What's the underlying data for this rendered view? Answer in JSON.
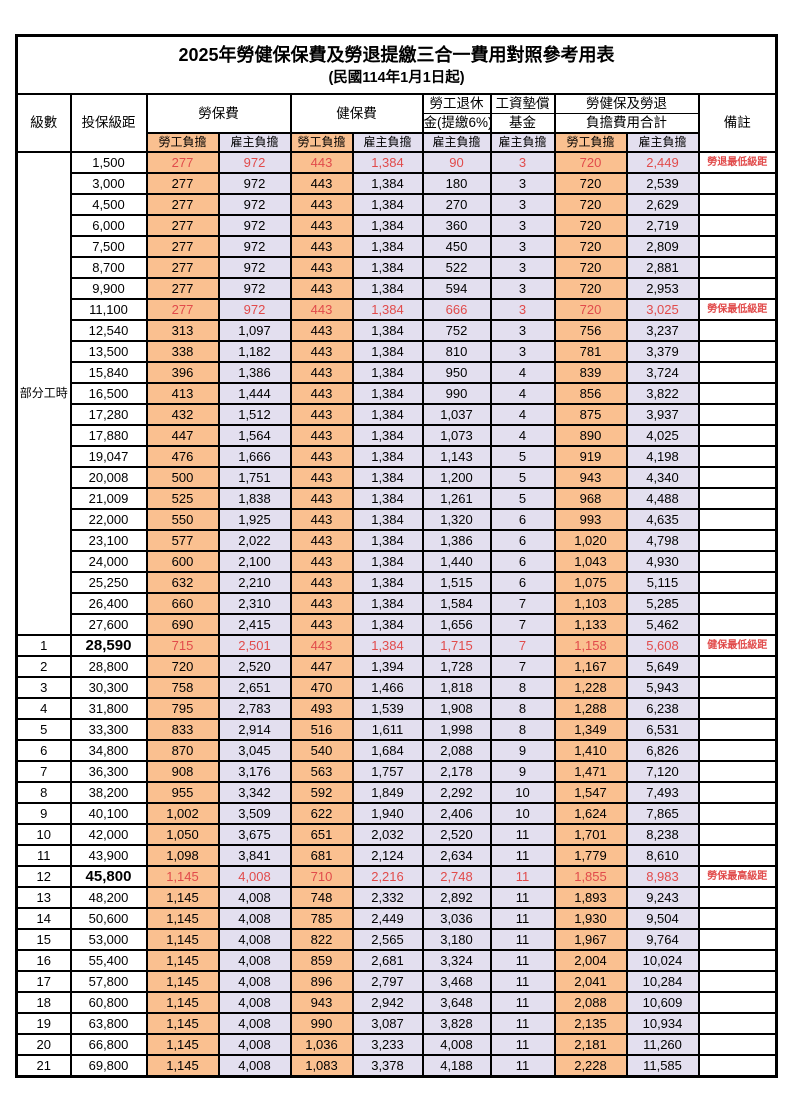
{
  "title": "2025年勞健保保費及勞退提繳三合一費用對照參考用表",
  "subtitle": "(民國114年1月1日起)",
  "header": {
    "level": "級數",
    "salary": "投保級距",
    "labor": "勞保費",
    "health": "健保費",
    "pension_line1": "勞工退休",
    "pension_line2": "金(提繳6%)",
    "wage_fund_line1": "工資墊償",
    "wage_fund_line2": "基金",
    "total_line1": "勞健保及勞退",
    "total_line2": "負擔費用合計",
    "note": "備註",
    "worker": "勞工負擔",
    "employer": "雇主負擔"
  },
  "part_time_label": "部分工時",
  "colors": {
    "worker_bg": "#FAC090",
    "employer_bg": "#E3DFEF",
    "highlight_text": "#E14B4B",
    "border": "#000000"
  },
  "notes_legend": {
    "pension_min": "勞退最低級距",
    "labor_min": "勞保最低級距",
    "health_min": "健保最低級距",
    "labor_max": "勞保最高級距"
  },
  "rows": [
    {
      "level": "",
      "salary": "1,500",
      "values": [
        "277",
        "972",
        "443",
        "1,384",
        "90",
        "3",
        "720",
        "2,449"
      ],
      "note": "勞退最低級距",
      "highlight": true,
      "bold": false
    },
    {
      "level": "",
      "salary": "3,000",
      "values": [
        "277",
        "972",
        "443",
        "1,384",
        "180",
        "3",
        "720",
        "2,539"
      ],
      "note": "",
      "highlight": false,
      "bold": false
    },
    {
      "level": "",
      "salary": "4,500",
      "values": [
        "277",
        "972",
        "443",
        "1,384",
        "270",
        "3",
        "720",
        "2,629"
      ],
      "note": "",
      "highlight": false,
      "bold": false
    },
    {
      "level": "",
      "salary": "6,000",
      "values": [
        "277",
        "972",
        "443",
        "1,384",
        "360",
        "3",
        "720",
        "2,719"
      ],
      "note": "",
      "highlight": false,
      "bold": false
    },
    {
      "level": "",
      "salary": "7,500",
      "values": [
        "277",
        "972",
        "443",
        "1,384",
        "450",
        "3",
        "720",
        "2,809"
      ],
      "note": "",
      "highlight": false,
      "bold": false
    },
    {
      "level": "",
      "salary": "8,700",
      "values": [
        "277",
        "972",
        "443",
        "1,384",
        "522",
        "3",
        "720",
        "2,881"
      ],
      "note": "",
      "highlight": false,
      "bold": false
    },
    {
      "level": "",
      "salary": "9,900",
      "values": [
        "277",
        "972",
        "443",
        "1,384",
        "594",
        "3",
        "720",
        "2,953"
      ],
      "note": "",
      "highlight": false,
      "bold": false
    },
    {
      "level": "",
      "salary": "11,100",
      "values": [
        "277",
        "972",
        "443",
        "1,384",
        "666",
        "3",
        "720",
        "3,025"
      ],
      "note": "勞保最低級距",
      "highlight": true,
      "bold": false
    },
    {
      "level": "",
      "salary": "12,540",
      "values": [
        "313",
        "1,097",
        "443",
        "1,384",
        "752",
        "3",
        "756",
        "3,237"
      ],
      "note": "",
      "highlight": false,
      "bold": false
    },
    {
      "level": "",
      "salary": "13,500",
      "values": [
        "338",
        "1,182",
        "443",
        "1,384",
        "810",
        "3",
        "781",
        "3,379"
      ],
      "note": "",
      "highlight": false,
      "bold": false
    },
    {
      "level": "",
      "salary": "15,840",
      "values": [
        "396",
        "1,386",
        "443",
        "1,384",
        "950",
        "4",
        "839",
        "3,724"
      ],
      "note": "",
      "highlight": false,
      "bold": false
    },
    {
      "level": "",
      "salary": "16,500",
      "values": [
        "413",
        "1,444",
        "443",
        "1,384",
        "990",
        "4",
        "856",
        "3,822"
      ],
      "note": "",
      "highlight": false,
      "bold": false
    },
    {
      "level": "",
      "salary": "17,280",
      "values": [
        "432",
        "1,512",
        "443",
        "1,384",
        "1,037",
        "4",
        "875",
        "3,937"
      ],
      "note": "",
      "highlight": false,
      "bold": false
    },
    {
      "level": "",
      "salary": "17,880",
      "values": [
        "447",
        "1,564",
        "443",
        "1,384",
        "1,073",
        "4",
        "890",
        "4,025"
      ],
      "note": "",
      "highlight": false,
      "bold": false
    },
    {
      "level": "",
      "salary": "19,047",
      "values": [
        "476",
        "1,666",
        "443",
        "1,384",
        "1,143",
        "5",
        "919",
        "4,198"
      ],
      "note": "",
      "highlight": false,
      "bold": false
    },
    {
      "level": "",
      "salary": "20,008",
      "values": [
        "500",
        "1,751",
        "443",
        "1,384",
        "1,200",
        "5",
        "943",
        "4,340"
      ],
      "note": "",
      "highlight": false,
      "bold": false
    },
    {
      "level": "",
      "salary": "21,009",
      "values": [
        "525",
        "1,838",
        "443",
        "1,384",
        "1,261",
        "5",
        "968",
        "4,488"
      ],
      "note": "",
      "highlight": false,
      "bold": false
    },
    {
      "level": "",
      "salary": "22,000",
      "values": [
        "550",
        "1,925",
        "443",
        "1,384",
        "1,320",
        "6",
        "993",
        "4,635"
      ],
      "note": "",
      "highlight": false,
      "bold": false
    },
    {
      "level": "",
      "salary": "23,100",
      "values": [
        "577",
        "2,022",
        "443",
        "1,384",
        "1,386",
        "6",
        "1,020",
        "4,798"
      ],
      "note": "",
      "highlight": false,
      "bold": false
    },
    {
      "level": "",
      "salary": "24,000",
      "values": [
        "600",
        "2,100",
        "443",
        "1,384",
        "1,440",
        "6",
        "1,043",
        "4,930"
      ],
      "note": "",
      "highlight": false,
      "bold": false
    },
    {
      "level": "",
      "salary": "25,250",
      "values": [
        "632",
        "2,210",
        "443",
        "1,384",
        "1,515",
        "6",
        "1,075",
        "5,115"
      ],
      "note": "",
      "highlight": false,
      "bold": false
    },
    {
      "level": "",
      "salary": "26,400",
      "values": [
        "660",
        "2,310",
        "443",
        "1,384",
        "1,584",
        "7",
        "1,103",
        "5,285"
      ],
      "note": "",
      "highlight": false,
      "bold": false
    },
    {
      "level": "",
      "salary": "27,600",
      "values": [
        "690",
        "2,415",
        "443",
        "1,384",
        "1,656",
        "7",
        "1,133",
        "5,462"
      ],
      "note": "",
      "highlight": false,
      "bold": false
    },
    {
      "level": "1",
      "salary": "28,590",
      "values": [
        "715",
        "2,501",
        "443",
        "1,384",
        "1,715",
        "7",
        "1,158",
        "5,608"
      ],
      "note": "健保最低級距",
      "highlight": true,
      "bold": true
    },
    {
      "level": "2",
      "salary": "28,800",
      "values": [
        "720",
        "2,520",
        "447",
        "1,394",
        "1,728",
        "7",
        "1,167",
        "5,649"
      ],
      "note": "",
      "highlight": false,
      "bold": false
    },
    {
      "level": "3",
      "salary": "30,300",
      "values": [
        "758",
        "2,651",
        "470",
        "1,466",
        "1,818",
        "8",
        "1,228",
        "5,943"
      ],
      "note": "",
      "highlight": false,
      "bold": false
    },
    {
      "level": "4",
      "salary": "31,800",
      "values": [
        "795",
        "2,783",
        "493",
        "1,539",
        "1,908",
        "8",
        "1,288",
        "6,238"
      ],
      "note": "",
      "highlight": false,
      "bold": false
    },
    {
      "level": "5",
      "salary": "33,300",
      "values": [
        "833",
        "2,914",
        "516",
        "1,611",
        "1,998",
        "8",
        "1,349",
        "6,531"
      ],
      "note": "",
      "highlight": false,
      "bold": false
    },
    {
      "level": "6",
      "salary": "34,800",
      "values": [
        "870",
        "3,045",
        "540",
        "1,684",
        "2,088",
        "9",
        "1,410",
        "6,826"
      ],
      "note": "",
      "highlight": false,
      "bold": false
    },
    {
      "level": "7",
      "salary": "36,300",
      "values": [
        "908",
        "3,176",
        "563",
        "1,757",
        "2,178",
        "9",
        "1,471",
        "7,120"
      ],
      "note": "",
      "highlight": false,
      "bold": false
    },
    {
      "level": "8",
      "salary": "38,200",
      "values": [
        "955",
        "3,342",
        "592",
        "1,849",
        "2,292",
        "10",
        "1,547",
        "7,493"
      ],
      "note": "",
      "highlight": false,
      "bold": false
    },
    {
      "level": "9",
      "salary": "40,100",
      "values": [
        "1,002",
        "3,509",
        "622",
        "1,940",
        "2,406",
        "10",
        "1,624",
        "7,865"
      ],
      "note": "",
      "highlight": false,
      "bold": false
    },
    {
      "level": "10",
      "salary": "42,000",
      "values": [
        "1,050",
        "3,675",
        "651",
        "2,032",
        "2,520",
        "11",
        "1,701",
        "8,238"
      ],
      "note": "",
      "highlight": false,
      "bold": false
    },
    {
      "level": "11",
      "salary": "43,900",
      "values": [
        "1,098",
        "3,841",
        "681",
        "2,124",
        "2,634",
        "11",
        "1,779",
        "8,610"
      ],
      "note": "",
      "highlight": false,
      "bold": false
    },
    {
      "level": "12",
      "salary": "45,800",
      "values": [
        "1,145",
        "4,008",
        "710",
        "2,216",
        "2,748",
        "11",
        "1,855",
        "8,983"
      ],
      "note": "勞保最高級距",
      "highlight": true,
      "bold": true
    },
    {
      "level": "13",
      "salary": "48,200",
      "values": [
        "1,145",
        "4,008",
        "748",
        "2,332",
        "2,892",
        "11",
        "1,893",
        "9,243"
      ],
      "note": "",
      "highlight": false,
      "bold": false
    },
    {
      "level": "14",
      "salary": "50,600",
      "values": [
        "1,145",
        "4,008",
        "785",
        "2,449",
        "3,036",
        "11",
        "1,930",
        "9,504"
      ],
      "note": "",
      "highlight": false,
      "bold": false
    },
    {
      "level": "15",
      "salary": "53,000",
      "values": [
        "1,145",
        "4,008",
        "822",
        "2,565",
        "3,180",
        "11",
        "1,967",
        "9,764"
      ],
      "note": "",
      "highlight": false,
      "bold": false
    },
    {
      "level": "16",
      "salary": "55,400",
      "values": [
        "1,145",
        "4,008",
        "859",
        "2,681",
        "3,324",
        "11",
        "2,004",
        "10,024"
      ],
      "note": "",
      "highlight": false,
      "bold": false
    },
    {
      "level": "17",
      "salary": "57,800",
      "values": [
        "1,145",
        "4,008",
        "896",
        "2,797",
        "3,468",
        "11",
        "2,041",
        "10,284"
      ],
      "note": "",
      "highlight": false,
      "bold": false
    },
    {
      "level": "18",
      "salary": "60,800",
      "values": [
        "1,145",
        "4,008",
        "943",
        "2,942",
        "3,648",
        "11",
        "2,088",
        "10,609"
      ],
      "note": "",
      "highlight": false,
      "bold": false
    },
    {
      "level": "19",
      "salary": "63,800",
      "values": [
        "1,145",
        "4,008",
        "990",
        "3,087",
        "3,828",
        "11",
        "2,135",
        "10,934"
      ],
      "note": "",
      "highlight": false,
      "bold": false
    },
    {
      "level": "20",
      "salary": "66,800",
      "values": [
        "1,145",
        "4,008",
        "1,036",
        "3,233",
        "4,008",
        "11",
        "2,181",
        "11,260"
      ],
      "note": "",
      "highlight": false,
      "bold": false
    },
    {
      "level": "21",
      "salary": "69,800",
      "values": [
        "1,145",
        "4,008",
        "1,083",
        "3,378",
        "4,188",
        "11",
        "2,228",
        "11,585"
      ],
      "note": "",
      "highlight": false,
      "bold": false
    }
  ]
}
